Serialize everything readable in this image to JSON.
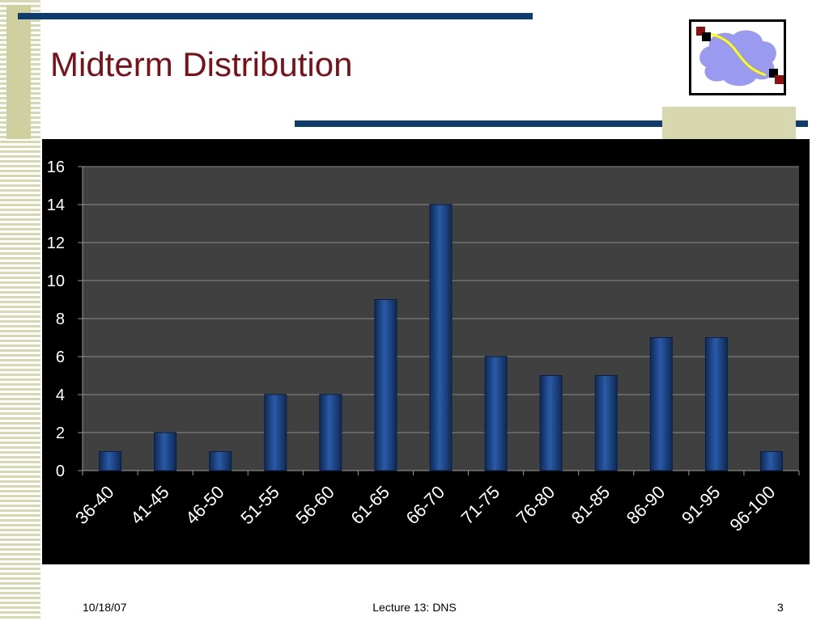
{
  "slide": {
    "title": "Midterm Distribution",
    "footer_date": "10/18/07",
    "footer_center": "Lecture 13: DNS",
    "page_number": "3",
    "logo_icon": "network-cloud-icon"
  },
  "colors": {
    "title": "#7a1018",
    "rule": "#0f3c6e",
    "accent_tan": "#d8d8b0",
    "bar": "#1f4a8a",
    "plot_bg": "#404040",
    "chart_bg": "#000000"
  },
  "chart_data": {
    "type": "bar",
    "title": "",
    "xlabel": "",
    "ylabel": "",
    "categories": [
      "36-40",
      "41-45",
      "46-50",
      "51-55",
      "56-60",
      "61-65",
      "66-70",
      "71-75",
      "76-80",
      "81-85",
      "86-90",
      "91-95",
      "96-100"
    ],
    "values": [
      1,
      2,
      1,
      4,
      4,
      9,
      14,
      6,
      5,
      5,
      7,
      7,
      1
    ],
    "ylim": [
      0,
      16
    ],
    "yticks": [
      0,
      2,
      4,
      6,
      8,
      10,
      12,
      14,
      16
    ],
    "grid": true,
    "legend": "none"
  }
}
